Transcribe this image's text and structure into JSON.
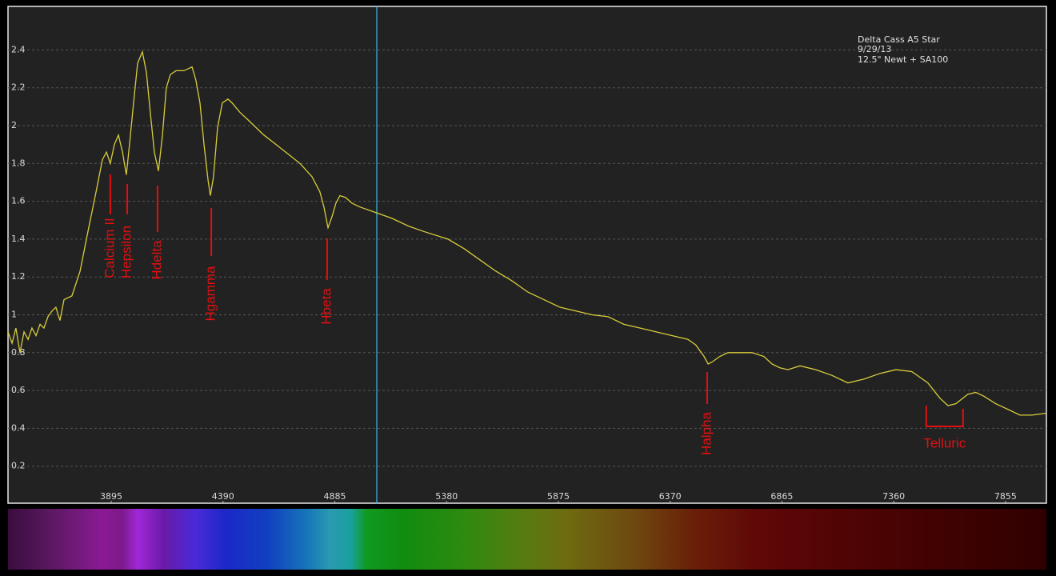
{
  "chart_data": {
    "type": "line",
    "info": [
      "Delta Cass A5 Star",
      "9/29/13",
      "12.5\"  Newt + SA100"
    ],
    "x": [
      3438,
      3456,
      3473,
      3491,
      3509,
      3527,
      3544,
      3562,
      3580,
      3597,
      3615,
      3633,
      3650,
      3668,
      3686,
      3721,
      3757,
      3792,
      3828,
      3856,
      3874,
      3891,
      3909,
      3927,
      3945,
      3962,
      3976,
      3994,
      4012,
      4033,
      4051,
      4068,
      4086,
      4104,
      4122,
      4139,
      4157,
      4182,
      4217,
      4253,
      4270,
      4288,
      4306,
      4324,
      4334,
      4348,
      4366,
      4387,
      4412,
      4430,
      4465,
      4501,
      4536,
      4571,
      4625,
      4678,
      4731,
      4784,
      4819,
      4837,
      4855,
      4873,
      4890,
      4908,
      4933,
      4961,
      4996,
      5067,
      5138,
      5209,
      5280,
      5386,
      5457,
      5528,
      5599,
      5669,
      5740,
      5811,
      5882,
      5953,
      6024,
      6095,
      6165,
      6236,
      6307,
      6378,
      6449,
      6484,
      6520,
      6538,
      6555,
      6590,
      6626,
      6661,
      6732,
      6785,
      6821,
      6856,
      6891,
      6945,
      7015,
      7086,
      7157,
      7228,
      7299,
      7370,
      7440,
      7511,
      7564,
      7600,
      7635,
      7688,
      7723,
      7759,
      7812,
      7866,
      7919,
      7972,
      8036
    ],
    "series": [
      {
        "color": "#d8cc3a",
        "values": [
          0.91,
          0.85,
          0.93,
          0.8,
          0.91,
          0.87,
          0.93,
          0.89,
          0.95,
          0.93,
          0.99,
          1.02,
          1.04,
          0.97,
          1.08,
          1.1,
          1.23,
          1.44,
          1.65,
          1.82,
          1.86,
          1.8,
          1.9,
          1.95,
          1.86,
          1.74,
          1.9,
          2.12,
          2.33,
          2.39,
          2.28,
          2.07,
          1.86,
          1.76,
          1.95,
          2.2,
          2.27,
          2.29,
          2.29,
          2.31,
          2.24,
          2.12,
          1.9,
          1.71,
          1.63,
          1.73,
          1.99,
          2.12,
          2.14,
          2.12,
          2.07,
          2.03,
          1.99,
          1.95,
          1.9,
          1.85,
          1.8,
          1.73,
          1.65,
          1.57,
          1.46,
          1.52,
          1.59,
          1.63,
          1.62,
          1.59,
          1.57,
          1.54,
          1.51,
          1.47,
          1.44,
          1.4,
          1.35,
          1.29,
          1.23,
          1.18,
          1.12,
          1.08,
          1.04,
          1.02,
          1.0,
          0.99,
          0.95,
          0.93,
          0.91,
          0.89,
          0.87,
          0.84,
          0.78,
          0.74,
          0.75,
          0.78,
          0.8,
          0.8,
          0.8,
          0.78,
          0.74,
          0.72,
          0.71,
          0.73,
          0.71,
          0.68,
          0.64,
          0.66,
          0.69,
          0.71,
          0.7,
          0.64,
          0.56,
          0.52,
          0.53,
          0.58,
          0.59,
          0.57,
          0.53,
          0.5,
          0.47,
          0.47,
          0.48
        ]
      }
    ],
    "xlim": [
      3438,
      8036
    ],
    "ylim": [
      0,
      2.63
    ],
    "xticks": [
      3895,
      4390,
      4885,
      5380,
      5875,
      6370,
      6865,
      7360,
      7855
    ],
    "yticks": [
      0.2,
      0.4,
      0.6,
      0.8,
      1,
      1.2,
      1.4,
      1.6,
      1.8,
      2,
      2.2,
      2.4
    ],
    "grid": true,
    "cursor": 5071,
    "annotations": [
      {
        "text": "Calcium II",
        "x": 3891
      },
      {
        "text": "Hepsilon",
        "x": 3966
      },
      {
        "text": "Hdelta",
        "x": 4100
      },
      {
        "text": "Hgamma",
        "x": 4338
      },
      {
        "text": "Hbeta",
        "x": 4851
      },
      {
        "text": "Halpha",
        "x": 6534
      },
      {
        "text": "Telluric",
        "x": [
          7504,
          7667
        ]
      }
    ]
  }
}
